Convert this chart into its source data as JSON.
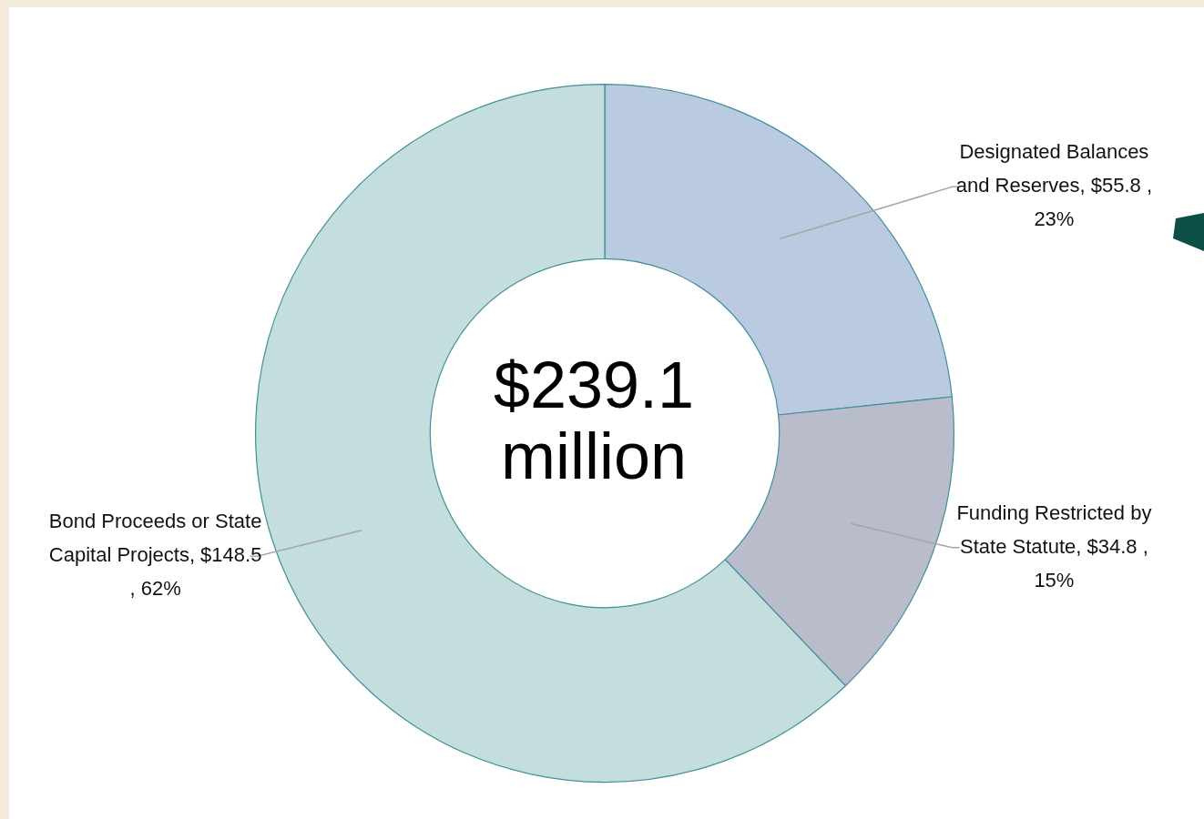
{
  "chart_data": {
    "type": "donut",
    "categories": [
      "Designated Balances and Reserves",
      "Funding Restricted by State Statute",
      "Bond Proceeds or State Capital Projects"
    ],
    "values": [
      55.8,
      34.8,
      148.5
    ],
    "value_labels": [
      "$55.8 , 23%",
      "$34.8 , 15%",
      "$148.5 , 62%"
    ],
    "colors": [
      "#b9cae1",
      "#b8bccb",
      "#c4dddd"
    ],
    "annotations": [
      "$239.1 million"
    ]
  }
}
